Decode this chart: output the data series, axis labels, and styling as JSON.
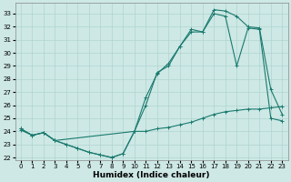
{
  "xlabel": "Humidex (Indice chaleur)",
  "xlim": [
    -0.5,
    23.5
  ],
  "ylim": [
    21.8,
    33.8
  ],
  "yticks": [
    22,
    23,
    24,
    25,
    26,
    27,
    28,
    29,
    30,
    31,
    32,
    33
  ],
  "xticks": [
    0,
    1,
    2,
    3,
    4,
    5,
    6,
    7,
    8,
    9,
    10,
    11,
    12,
    13,
    14,
    15,
    16,
    17,
    18,
    19,
    20,
    21,
    22,
    23
  ],
  "bg_color": "#cde8e5",
  "grid_color": "#b0d4d0",
  "line_color": "#1a7a6e",
  "line1_x": [
    0,
    1,
    2,
    3,
    10,
    11,
    12,
    13,
    14,
    15,
    16,
    17,
    18,
    19,
    20,
    21,
    22,
    23
  ],
  "line1_y": [
    24.1,
    23.7,
    23.9,
    23.3,
    24.0,
    26.6,
    28.4,
    29.2,
    30.5,
    31.6,
    31.6,
    33.3,
    33.2,
    32.8,
    32.0,
    31.9,
    27.2,
    25.3
  ],
  "line2_x": [
    0,
    1,
    2,
    3,
    4,
    5,
    6,
    7,
    8,
    9,
    10,
    11,
    12,
    13,
    14,
    15,
    16,
    17,
    18,
    19,
    20,
    21,
    22,
    23
  ],
  "line2_y": [
    24.2,
    23.7,
    23.9,
    23.3,
    23.0,
    22.7,
    22.4,
    22.2,
    22.0,
    22.3,
    24.0,
    24.0,
    24.2,
    24.3,
    24.5,
    24.7,
    25.0,
    25.3,
    25.5,
    25.6,
    25.7,
    25.7,
    25.8,
    25.9
  ],
  "line3_x": [
    0,
    1,
    2,
    3,
    4,
    5,
    6,
    7,
    8,
    9,
    10,
    11,
    12,
    13,
    14,
    15,
    16,
    17,
    18,
    19,
    20,
    21,
    22,
    23
  ],
  "line3_y": [
    24.2,
    23.7,
    23.9,
    23.3,
    23.0,
    22.7,
    22.4,
    22.2,
    22.0,
    22.3,
    24.0,
    26.0,
    28.5,
    29.0,
    30.5,
    31.8,
    31.6,
    33.0,
    32.8,
    29.0,
    31.9,
    31.8,
    25.0,
    24.8
  ]
}
